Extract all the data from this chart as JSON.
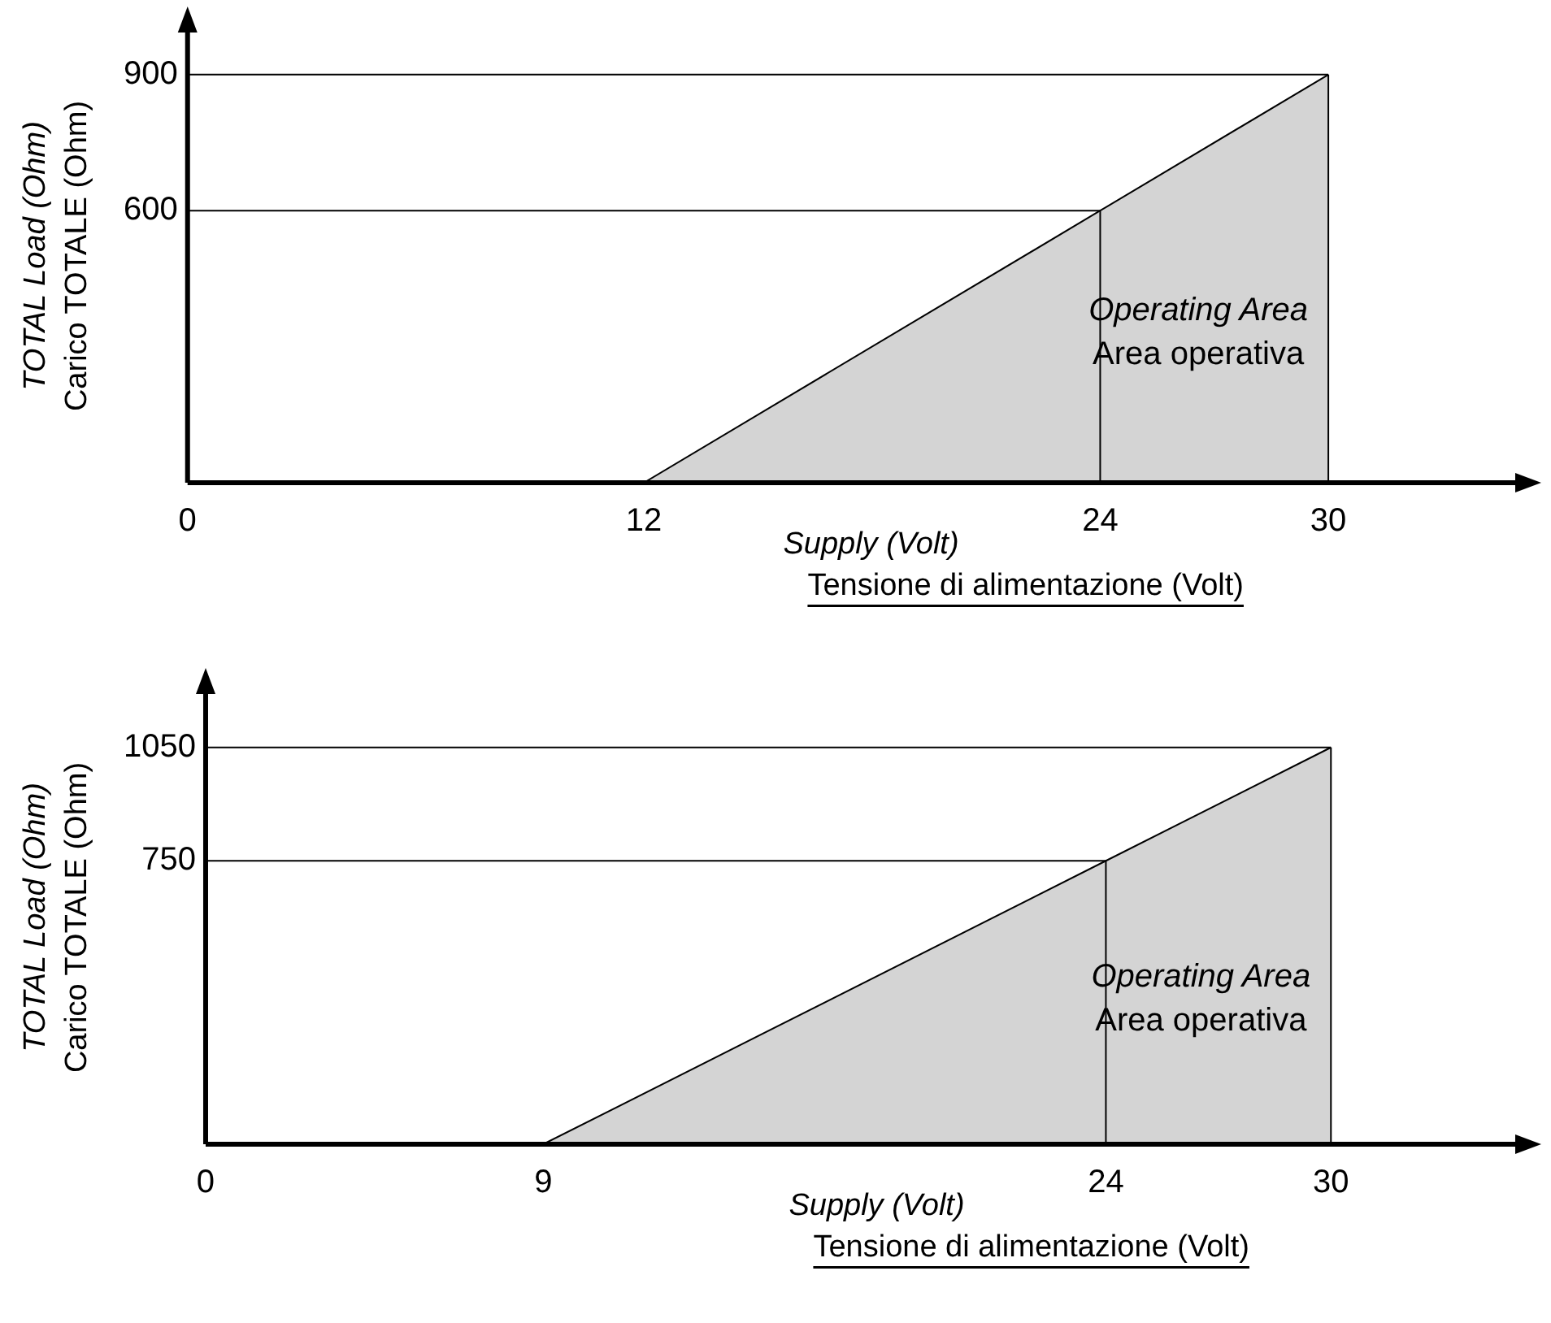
{
  "chart_data": [
    {
      "type": "area",
      "xlabel": "Supply (Volt)\nTensione di alimentazione (Volt)",
      "ylabel": "TOTAL Load (Ohm)\nCarico TOTALE (Ohm)",
      "x": [
        12,
        24,
        30
      ],
      "values": [
        0,
        600,
        900
      ],
      "color": "#d4d4d4",
      "xlim": [
        0,
        35
      ],
      "ylim": [
        0,
        1000
      ],
      "xticks": [
        0,
        12,
        24,
        30
      ],
      "yticks": [
        600,
        900
      ],
      "grid": false,
      "legend": false,
      "ref_lines": [
        {
          "axis": "y",
          "value": 600
        },
        {
          "axis": "y",
          "value": 900
        },
        {
          "axis": "x",
          "value": 24
        },
        {
          "axis": "x",
          "value": 30
        }
      ],
      "annotations": [
        "Operating Area",
        "Area operativa"
      ]
    },
    {
      "type": "area",
      "xlabel": "Supply (Volt)\nTensione di alimentazione (Volt)",
      "ylabel": "TOTAL Load (Ohm)\nCarico TOTALE (Ohm)",
      "x": [
        9,
        24,
        30
      ],
      "values": [
        0,
        750,
        1050
      ],
      "color": "#d4d4d4",
      "xlim": [
        0,
        35
      ],
      "ylim": [
        0,
        1200
      ],
      "xticks": [
        0,
        9,
        24,
        30
      ],
      "yticks": [
        750,
        1050
      ],
      "grid": false,
      "legend": false,
      "ref_lines": [
        {
          "axis": "y",
          "value": 750
        },
        {
          "axis": "y",
          "value": 1050
        },
        {
          "axis": "x",
          "value": 24
        },
        {
          "axis": "x",
          "value": 30
        }
      ],
      "annotations": [
        "Operating Area",
        "Area operativa"
      ]
    }
  ]
}
